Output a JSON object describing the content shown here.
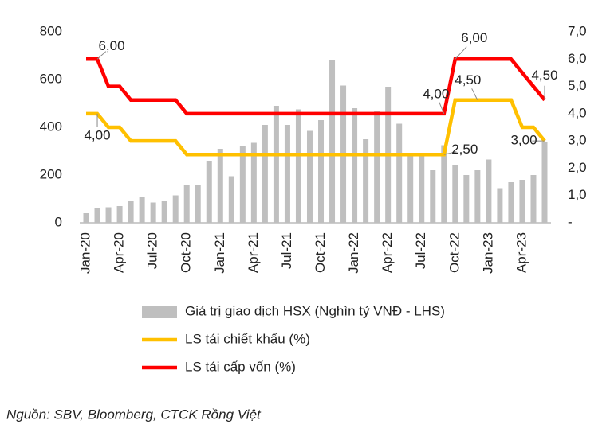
{
  "chart_data": {
    "type": "combo",
    "categories": [
      "Jan-20",
      null,
      null,
      "Apr-20",
      null,
      null,
      "Jul-20",
      null,
      null,
      "Oct-20",
      null,
      null,
      "Jan-21",
      null,
      null,
      "Apr-21",
      null,
      null,
      "Jul-21",
      null,
      null,
      "Oct-21",
      null,
      null,
      "Jan-22",
      null,
      null,
      "Apr-22",
      null,
      null,
      "Jul-22",
      null,
      null,
      "Oct-22",
      null,
      null,
      "Jan-23",
      null,
      null,
      "Apr-23",
      null,
      null
    ],
    "ylim": [
      0,
      800
    ],
    "yticks": [
      0,
      200,
      400,
      600,
      800
    ],
    "y2lim": [
      0,
      7
    ],
    "y2ticks": [
      {
        "value": 0,
        "label": "-"
      },
      {
        "value": 1,
        "label": "1,0"
      },
      {
        "value": 2,
        "label": "2,0"
      },
      {
        "value": 3,
        "label": "3,0"
      },
      {
        "value": 4,
        "label": "4,0"
      },
      {
        "value": 5,
        "label": "5,0"
      },
      {
        "value": 6,
        "label": "6,0"
      },
      {
        "value": 7,
        "label": "7,0"
      }
    ],
    "series": [
      {
        "name": "Giá trị giao dịch HSX (Nghìn tỷ VNĐ - LHS)",
        "type": "bar",
        "color": "#bfbfbf",
        "values": [
          40,
          60,
          65,
          70,
          90,
          110,
          85,
          90,
          115,
          160,
          160,
          260,
          310,
          195,
          320,
          335,
          410,
          490,
          410,
          475,
          385,
          430,
          680,
          575,
          480,
          350,
          470,
          570,
          415,
          290,
          285,
          220,
          325,
          240,
          200,
          220,
          265,
          145,
          170,
          180,
          200,
          340
        ]
      },
      {
        "name": "LS tái chiết khấu (%)",
        "type": "line",
        "axis": "y2",
        "color": "#ffc000",
        "values": [
          4.0,
          4.0,
          3.5,
          3.5,
          3.0,
          3.0,
          3.0,
          3.0,
          3.0,
          2.5,
          2.5,
          2.5,
          2.5,
          2.5,
          2.5,
          2.5,
          2.5,
          2.5,
          2.5,
          2.5,
          2.5,
          2.5,
          2.5,
          2.5,
          2.5,
          2.5,
          2.5,
          2.5,
          2.5,
          2.5,
          2.5,
          2.5,
          2.5,
          4.5,
          4.5,
          4.5,
          4.5,
          4.5,
          4.5,
          3.5,
          3.5,
          3.0
        ],
        "value_labels": [
          null,
          "4,00",
          null,
          null,
          null,
          null,
          null,
          null,
          null,
          null,
          null,
          null,
          null,
          null,
          null,
          null,
          null,
          null,
          null,
          null,
          null,
          null,
          null,
          null,
          null,
          null,
          null,
          null,
          null,
          null,
          null,
          null,
          "2,50",
          null,
          null,
          "4,50",
          null,
          null,
          null,
          null,
          null,
          "3,00"
        ]
      },
      {
        "name": "LS tái cấp vốn (%)",
        "type": "line",
        "axis": "y2",
        "color": "#ff0000",
        "values": [
          6.0,
          6.0,
          5.0,
          5.0,
          4.5,
          4.5,
          4.5,
          4.5,
          4.5,
          4.0,
          4.0,
          4.0,
          4.0,
          4.0,
          4.0,
          4.0,
          4.0,
          4.0,
          4.0,
          4.0,
          4.0,
          4.0,
          4.0,
          4.0,
          4.0,
          4.0,
          4.0,
          4.0,
          4.0,
          4.0,
          4.0,
          4.0,
          4.0,
          6.0,
          6.0,
          6.0,
          6.0,
          6.0,
          6.0,
          5.5,
          5.0,
          4.5
        ],
        "value_labels": [
          null,
          "6,00",
          null,
          null,
          null,
          null,
          null,
          null,
          null,
          null,
          null,
          null,
          null,
          null,
          null,
          null,
          null,
          null,
          null,
          null,
          null,
          null,
          null,
          null,
          null,
          null,
          null,
          null,
          null,
          null,
          null,
          null,
          "4,00",
          "6,00",
          null,
          null,
          null,
          null,
          null,
          null,
          null,
          "4,50"
        ]
      }
    ],
    "source": "Nguồn: SBV, Bloomberg, CTCK Rồng Việt"
  }
}
